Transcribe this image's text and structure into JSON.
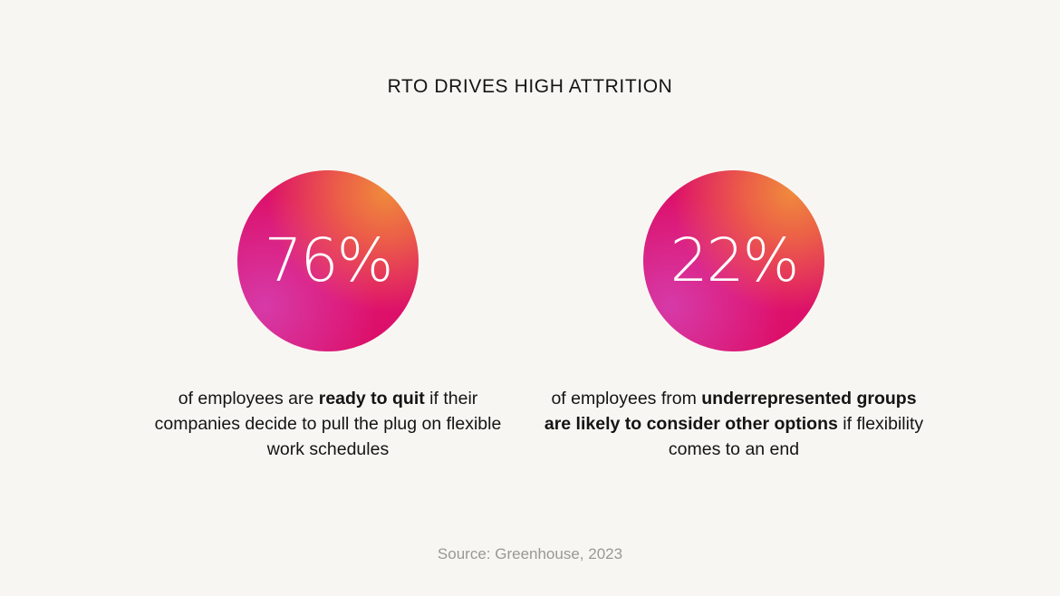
{
  "title": "RTO DRIVES HIGH ATTRITION",
  "stats": [
    {
      "value": "76%",
      "text_before": "of employees are ",
      "text_bold": "ready to quit",
      "text_after": " if their companies decide to pull the plug on flexible work schedules"
    },
    {
      "value": "22%",
      "text_before": "of employees from ",
      "text_bold": "underrepresented groups are likely to consider other options",
      "text_after": " if flexibility comes to an end"
    }
  ],
  "source": "Source: Greenhouse, 2023",
  "colors": {
    "background": "#f8f6f2",
    "circle_primary": "#e3126e",
    "circle_accent_orange": "#f08a3c",
    "circle_accent_purple": "#d63aa8",
    "source_text": "#9a9893"
  }
}
